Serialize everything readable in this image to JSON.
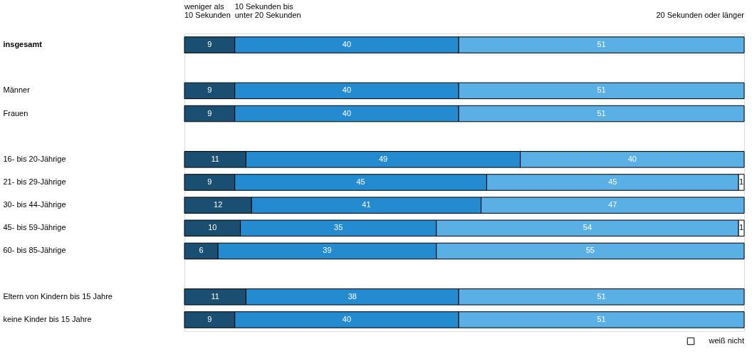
{
  "chart_data": {
    "type": "bar",
    "orientation": "horizontal",
    "stacked": true,
    "data_labels": true,
    "legend": "bottom right",
    "grid": false,
    "tick_labels": "y",
    "xlim": [
      0,
      100
    ],
    "categories": [
      "insgesamt",
      null,
      "Männer",
      "Frauen",
      null,
      "16- bis 20-Jährige",
      "21- bis 29-Jährige",
      "30- bis 44-Jährige",
      "45- bis 59-Jährige",
      "60- bis 85-Jährige",
      null,
      "Eltern von Kindern bis 15 Jahre",
      "keine Kinder bis 15 Jahre"
    ],
    "series": [
      {
        "name": "weniger als\n10 Sekunden",
        "color": "#1b4f72",
        "values": [
          9,
          null,
          9,
          9,
          null,
          11,
          9,
          12,
          10,
          6,
          null,
          11,
          9
        ]
      },
      {
        "name": "10 Sekunden bis\nunter 20 Sekunden",
        "color": "#258bd0",
        "values": [
          40,
          null,
          40,
          40,
          null,
          49,
          45,
          41,
          35,
          39,
          null,
          38,
          40
        ]
      },
      {
        "name": "20 Sekunden oder länger",
        "color": "#5aafe4",
        "values": [
          51,
          null,
          51,
          51,
          null,
          40,
          45,
          47,
          54,
          55,
          null,
          51,
          51
        ]
      },
      {
        "name": "weiß nicht",
        "color": "#ffffff",
        "values": [
          null,
          null,
          null,
          null,
          null,
          null,
          1,
          null,
          1,
          null,
          null,
          null,
          null
        ]
      }
    ]
  }
}
